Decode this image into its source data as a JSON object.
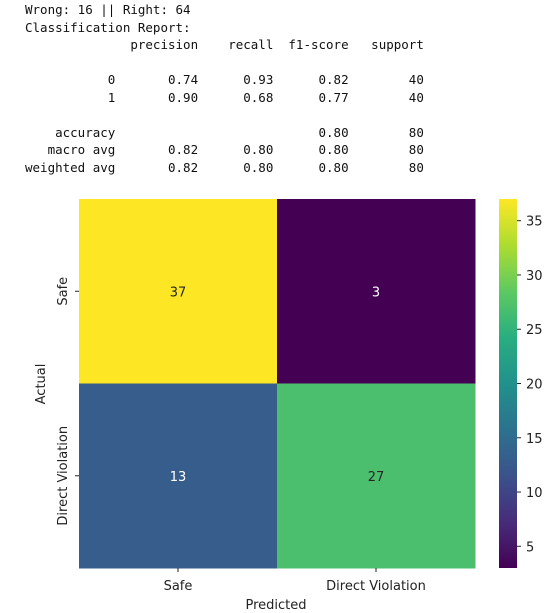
{
  "report": {
    "lines": [
      "Wrong: 16 || Right: 64",
      "Classification Report:",
      "              precision    recall  f1-score   support",
      "",
      "           0       0.74      0.93      0.82        40",
      "           1       0.90      0.68      0.77        40",
      "",
      "    accuracy                           0.80        80",
      "   macro avg       0.82      0.80      0.80        80",
      "weighted avg       0.82      0.80      0.80        80"
    ]
  },
  "chart_data": {
    "type": "heatmap",
    "title": "",
    "xlabel": "Predicted",
    "ylabel": "Actual",
    "x_categories": [
      "Safe",
      "Direct Violation"
    ],
    "y_categories": [
      "Safe",
      "Direct Violation"
    ],
    "values": [
      [
        37,
        3
      ],
      [
        13,
        27
      ]
    ],
    "colormap": "viridis",
    "vmin": 3,
    "vmax": 37,
    "colorbar_ticks": [
      5,
      10,
      15,
      20,
      25,
      30,
      35
    ]
  }
}
